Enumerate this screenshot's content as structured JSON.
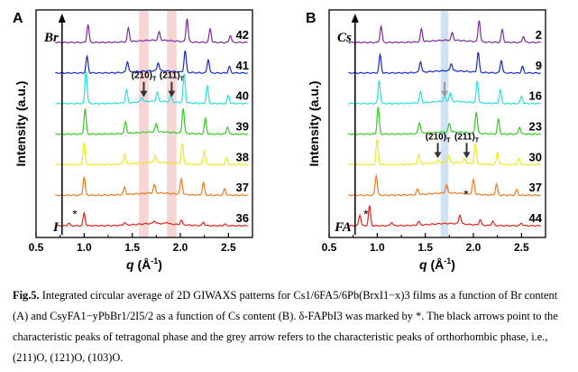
{
  "caption": {
    "label": "Fig.5.",
    "text": "Integrated circular average of 2D GIWAXS patterns for Cs1/6FA5/6Pb(BrxI1−x)3 films as a function of Br content (A) and CsyFA1−yPbBr1/2I5/2 as a function of Cs content (B). δ-FAPbI3 was marked by *. The black arrows point to the characteristic peaks of tetragonal phase and the grey arrow refers to the characteristic peaks of orthorhombic phase, i.e., (211)O, (121)O, (103)O."
  },
  "chart_data": [
    {
      "type": "line",
      "panel": "A",
      "xlabel": "q (Å⁻¹)",
      "ylabel": "Intensity (a.u.)",
      "xlim": [
        0.5,
        2.75
      ],
      "xticks": [
        0.5,
        1.0,
        1.5,
        2.0,
        2.5
      ],
      "ytick_labels": false,
      "arrow_top_label": "Br",
      "arrow_bottom_label": "I",
      "highlight_bands": [
        {
          "x": [
            1.57,
            1.67
          ],
          "color": "#f8d5d5"
        },
        {
          "x": [
            1.86,
            1.96
          ],
          "color": "#f8d5d5"
        }
      ],
      "annotations": [
        {
          "text": "(210)T",
          "x": 1.62,
          "y_series": "40",
          "arrow_color": "#333333"
        },
        {
          "text": "(211)T",
          "x": 1.91,
          "y_series": "40",
          "arrow_color": "#333333"
        },
        {
          "text": "*",
          "x": 0.84,
          "y_series": "36"
        }
      ],
      "series": [
        {
          "name": "36",
          "color": "#e8231d",
          "peaks": [
            [
              0.84,
              3
            ],
            [
              1.0,
              14
            ],
            [
              1.42,
              3
            ],
            [
              1.73,
              3
            ],
            [
              1.86,
              2
            ],
            [
              2.01,
              5
            ],
            [
              2.24,
              4
            ],
            [
              2.46,
              2
            ]
          ]
        },
        {
          "name": "37",
          "color": "#ee7a1e",
          "peaks": [
            [
              1.0,
              20
            ],
            [
              1.42,
              8
            ],
            [
              1.73,
              9
            ],
            [
              2.01,
              17
            ],
            [
              2.24,
              14
            ],
            [
              2.46,
              7
            ]
          ]
        },
        {
          "name": "38",
          "color": "#f2e81e",
          "peaks": [
            [
              1.0,
              24
            ],
            [
              1.42,
              11
            ],
            [
              1.74,
              8
            ],
            [
              2.02,
              22
            ],
            [
              2.25,
              16
            ],
            [
              2.48,
              7
            ]
          ]
        },
        {
          "name": "39",
          "color": "#33cc20",
          "peaks": [
            [
              1.01,
              28
            ],
            [
              1.43,
              13
            ],
            [
              1.75,
              9
            ],
            [
              2.03,
              28
            ],
            [
              2.26,
              17
            ],
            [
              2.49,
              8
            ]
          ]
        },
        {
          "name": "40",
          "color": "#26e0e0",
          "peaks": [
            [
              1.02,
              36
            ],
            [
              1.44,
              14
            ],
            [
              1.6,
              5
            ],
            [
              1.76,
              10
            ],
            [
              1.9,
              7
            ],
            [
              2.04,
              32
            ],
            [
              2.28,
              19
            ],
            [
              2.5,
              9
            ]
          ]
        },
        {
          "name": "41",
          "color": "#1529c9",
          "peaks": [
            [
              1.03,
              18
            ],
            [
              1.45,
              12
            ],
            [
              1.77,
              9
            ],
            [
              2.05,
              24
            ],
            [
              2.29,
              15
            ],
            [
              2.51,
              7
            ]
          ]
        },
        {
          "name": "42",
          "color": "#7d2a9a",
          "peaks": [
            [
              1.04,
              20
            ],
            [
              1.46,
              15
            ],
            [
              1.78,
              9
            ],
            [
              2.07,
              26
            ],
            [
              2.31,
              15
            ],
            [
              2.52,
              8
            ]
          ]
        }
      ]
    },
    {
      "type": "line",
      "panel": "B",
      "xlabel": "q (Å⁻¹)",
      "ylabel": "Intensity (a.u.)",
      "xlim": [
        0.5,
        2.75
      ],
      "xticks": [
        0.5,
        1.0,
        1.5,
        2.0,
        2.5
      ],
      "ytick_labels": false,
      "arrow_top_label": "Cs",
      "arrow_bottom_label": "FA",
      "highlight_bands": [
        {
          "x": [
            1.66,
            1.74
          ],
          "color": "#cfe3f5"
        }
      ],
      "annotations": [
        {
          "text": "(210)T",
          "x": 1.63,
          "y_series": "30",
          "arrow_color": "#333333"
        },
        {
          "text": "(211)T",
          "x": 1.93,
          "y_series": "30",
          "arrow_color": "#333333"
        },
        {
          "text": "",
          "x": 1.7,
          "y_series": "16",
          "arrow_color": "#9a9a9a"
        },
        {
          "text": "*",
          "x": 0.82,
          "y_series": "44"
        },
        {
          "text": "*",
          "x": 1.86,
          "y_series": "44"
        }
      ],
      "series": [
        {
          "name": "44",
          "color": "#e8231d",
          "peaks": [
            [
              0.82,
              12
            ],
            [
              0.92,
              22
            ],
            [
              1.15,
              4
            ],
            [
              1.43,
              4
            ],
            [
              1.86,
              10
            ],
            [
              2.07,
              6
            ],
            [
              2.2,
              5
            ],
            [
              2.5,
              3
            ]
          ]
        },
        {
          "name": "37",
          "color": "#ee7a1e",
          "peaks": [
            [
              0.99,
              22
            ],
            [
              1.42,
              6
            ],
            [
              1.72,
              9
            ],
            [
              2.0,
              16
            ],
            [
              2.24,
              12
            ],
            [
              2.45,
              6
            ]
          ]
        },
        {
          "name": "30",
          "color": "#f2e81e",
          "peaks": [
            [
              1.0,
              28
            ],
            [
              1.43,
              10
            ],
            [
              1.63,
              3
            ],
            [
              1.74,
              8
            ],
            [
              1.91,
              5
            ],
            [
              2.02,
              22
            ],
            [
              2.25,
              14
            ],
            [
              2.47,
              7
            ]
          ]
        },
        {
          "name": "23",
          "color": "#33cc20",
          "peaks": [
            [
              1.01,
              30
            ],
            [
              1.44,
              12
            ],
            [
              1.75,
              9
            ],
            [
              2.03,
              24
            ],
            [
              2.26,
              16
            ],
            [
              2.48,
              8
            ]
          ]
        },
        {
          "name": "16",
          "color": "#26e0e0",
          "peaks": [
            [
              1.02,
              26
            ],
            [
              1.45,
              12
            ],
            [
              1.7,
              6
            ],
            [
              1.76,
              9
            ],
            [
              2.04,
              24
            ],
            [
              2.28,
              15
            ],
            [
              2.5,
              8
            ]
          ]
        },
        {
          "name": "9",
          "color": "#1529c9",
          "peaks": [
            [
              1.03,
              20
            ],
            [
              1.45,
              12
            ],
            [
              1.77,
              8
            ],
            [
              2.05,
              22
            ],
            [
              2.29,
              14
            ],
            [
              2.51,
              7
            ]
          ]
        },
        {
          "name": "2",
          "color": "#7d2a9a",
          "peaks": [
            [
              1.04,
              18
            ],
            [
              1.46,
              14
            ],
            [
              1.78,
              8
            ],
            [
              2.06,
              24
            ],
            [
              2.3,
              14
            ],
            [
              2.52,
              7
            ]
          ]
        }
      ]
    }
  ],
  "colors": {
    "axis": "#000000",
    "arrow_dark": "#333333",
    "arrow_grey": "#9a9a9a"
  }
}
